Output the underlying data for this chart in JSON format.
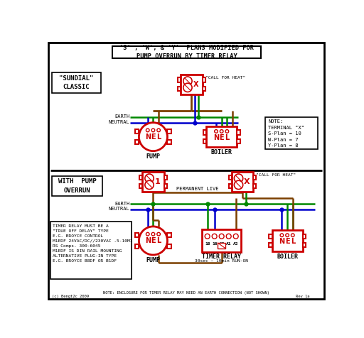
{
  "title_line1": "'S' , 'W', & 'Y'  PLANS MODIFIED FOR",
  "title_line2": "PUMP OVERRUN BY TIMER RELAY",
  "bg_color": "#ffffff",
  "red": "#cc0000",
  "green": "#008800",
  "blue": "#0000cc",
  "brown": "#7B3F00",
  "sundial_label": "\"SUNDIAL\"\nCLASSIC",
  "with_pump_label": "WITH  PUMP\nOVERRUN",
  "pump_label": "PUMP",
  "boiler_label": "BOILER",
  "call_for_heat": "\"CALL FOR HEAT\"",
  "permanent_live": "PERMANENT LIVE",
  "earth": "EARTH",
  "neutral": "NEUTRAL",
  "timer_relay_label": "TIMER RELAY",
  "timer_relay_sub": "30sec ~ 10min RUN-ON",
  "note_bottom": "NOTE: ENCLOSURE FOR TIMER RELAY MAY NEED AN EARTH CONNECTION (NOT SHOWN)",
  "note_box_text": "NOTE:\nTERMINAL \"X\"\nS-Plan = 10\nW-Plan = 7\nY-Plan = 8",
  "timer_note": "TIMER RELAY MUST BE A\n\"TRUE OFF DELAY\" TYPE\nE.G. BROYCE CONTROL\nM1EDF 24VAC/DC//230VAC .5-10MI\nRS Comps. 300-6045\nM1EDF IS DIN RAIL MOUNTING\nALTERNATIVE PLUG-IN TYPE\nE.G. BROYCE B8DF OR B1DF",
  "rev": "Rev 1a",
  "copyright": "(c) Bengt2c 2009"
}
